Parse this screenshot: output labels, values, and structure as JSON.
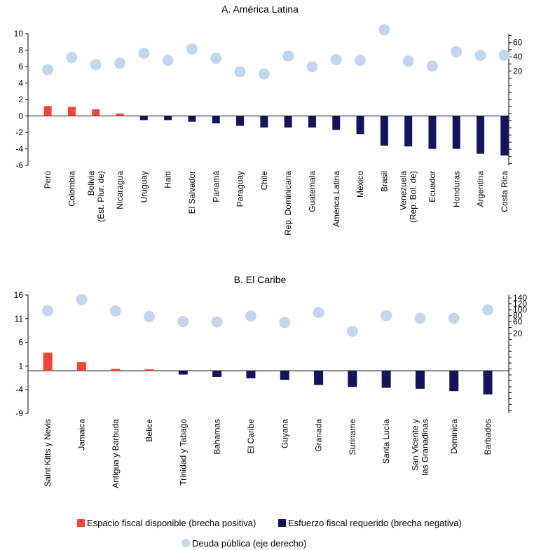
{
  "colors": {
    "positive": "#f2463a",
    "negative": "#13145c",
    "debt": "#c3d6ee"
  },
  "legend": {
    "positive": "Espacio fiscal disponible (brecha positiva)",
    "negative": "Esfuerzo fiscal requerido (brecha negativa)",
    "debt": "Deuda pública (eje derecho)"
  },
  "chart_data": [
    {
      "type": "bar",
      "title": "A. América Latina",
      "categories": [
        "Perú",
        "Colombia",
        "Bolivia\n(Est. Plur. de)",
        "Nicaragua",
        "Uruguay",
        "Haití",
        "El Salvador",
        "Panamá",
        "Paraguay",
        "Chile",
        "Rep. Dominicana",
        "Guatemala",
        "América Latina",
        "México",
        "Brasil",
        "Venezuela\n(Rep. Bol. de)",
        "Ecuador",
        "Honduras",
        "Argentina",
        "Costa Rica"
      ],
      "gap": [
        1.2,
        1.1,
        0.8,
        0.3,
        -0.5,
        -0.5,
        -0.7,
        -0.9,
        -1.2,
        -1.4,
        -1.4,
        -1.4,
        -1.7,
        -2.2,
        -3.6,
        -3.7,
        -4.0,
        -4.0,
        -4.6,
        -4.8
      ],
      "debt": [
        22,
        39,
        29,
        31,
        45,
        35,
        51,
        38,
        19,
        16,
        41,
        26,
        36,
        35,
        78,
        34,
        27,
        47,
        42,
        42
      ],
      "ylim": [
        -6,
        10
      ],
      "yticks": [
        -6,
        -4,
        -2,
        0,
        2,
        4,
        6,
        8,
        10
      ],
      "y2lim": [
        -112.5,
        72.5
      ],
      "y2ticks": [
        20,
        40,
        60
      ]
    },
    {
      "type": "bar",
      "title": "B. El Caribe",
      "categories": [
        "Saint Kitts y Nevis",
        "Jamaica",
        "Antigua y Barbuda",
        "Belice",
        "Trinidad y Tabago",
        "Bahamas",
        "El Caribe",
        "Guyana",
        "Granada",
        "Suriname",
        "Santa Lucía",
        "San Vicente y\nlas Granadinas",
        "Dominica",
        "Barbados"
      ],
      "gap": [
        3.8,
        1.8,
        0.4,
        0.3,
        -0.8,
        -1.3,
        -1.6,
        -1.9,
        -3.0,
        -3.4,
        -3.6,
        -3.8,
        -4.3,
        -5.0
      ],
      "debt": [
        97,
        134,
        96,
        77,
        60,
        59,
        79,
        57,
        91,
        27,
        80,
        71,
        71,
        100
      ],
      "ylim": [
        -9,
        16
      ],
      "yticks": [
        -9,
        -4,
        1,
        6,
        11,
        16
      ],
      "y2lim": [
        -250,
        150
      ],
      "y2ticks": [
        20,
        60,
        80,
        100,
        120,
        140
      ]
    }
  ]
}
